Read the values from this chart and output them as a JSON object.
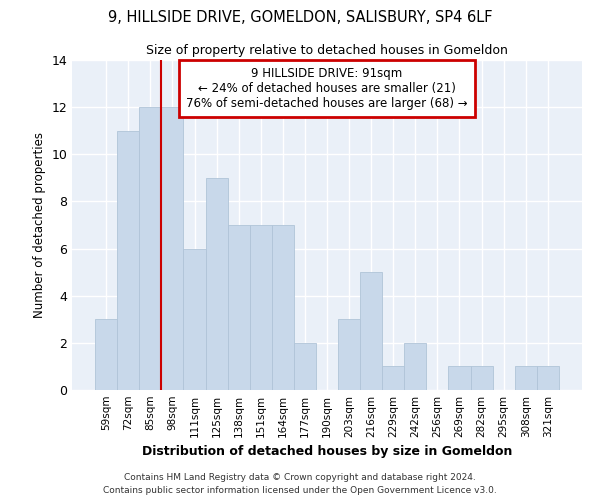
{
  "title": "9, HILLSIDE DRIVE, GOMELDON, SALISBURY, SP4 6LF",
  "subtitle": "Size of property relative to detached houses in Gomeldon",
  "xlabel": "Distribution of detached houses by size in Gomeldon",
  "ylabel": "Number of detached properties",
  "categories": [
    "59sqm",
    "72sqm",
    "85sqm",
    "98sqm",
    "111sqm",
    "125sqm",
    "138sqm",
    "151sqm",
    "164sqm",
    "177sqm",
    "190sqm",
    "203sqm",
    "216sqm",
    "229sqm",
    "242sqm",
    "256sqm",
    "269sqm",
    "282sqm",
    "295sqm",
    "308sqm",
    "321sqm"
  ],
  "values": [
    3,
    11,
    12,
    12,
    6,
    9,
    7,
    7,
    7,
    2,
    0,
    3,
    5,
    1,
    2,
    0,
    1,
    1,
    0,
    1,
    1
  ],
  "bar_color": "#c8d8ea",
  "bar_edge_color": "#b0c4d8",
  "red_line_x": 2.5,
  "ylim": [
    0,
    14
  ],
  "yticks": [
    0,
    2,
    4,
    6,
    8,
    10,
    12,
    14
  ],
  "annotation_text": "9 HILLSIDE DRIVE: 91sqm\n← 24% of detached houses are smaller (21)\n76% of semi-detached houses are larger (68) →",
  "annotation_box_color": "#ffffff",
  "annotation_box_edge": "#cc0000",
  "footer_line1": "Contains HM Land Registry data © Crown copyright and database right 2024.",
  "footer_line2": "Contains public sector information licensed under the Open Government Licence v3.0.",
  "background_color": "#eaf0f8"
}
